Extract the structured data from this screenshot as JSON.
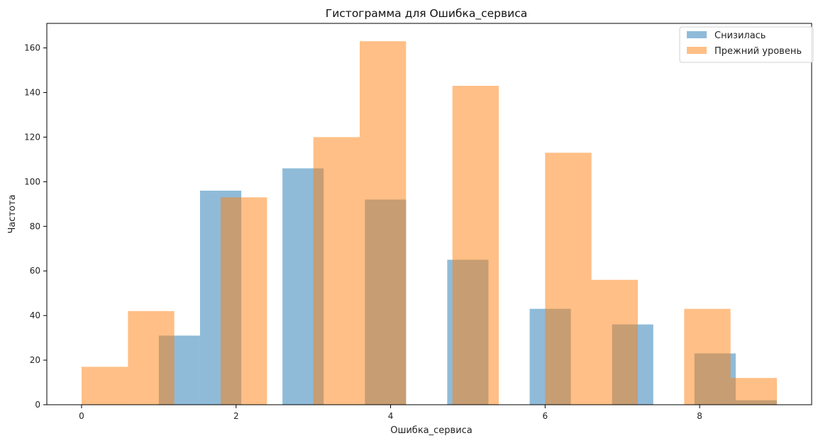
{
  "chart_data": {
    "type": "bar",
    "title": "Гистограмма для Ошибка_сервиса",
    "xlabel": "Ошибка_сервиса",
    "ylabel": "Частота",
    "xlim": [
      -0.45,
      9.45
    ],
    "ylim": [
      0,
      171
    ],
    "x_ticks": [
      0,
      2,
      4,
      6,
      8
    ],
    "y_ticks": [
      0,
      20,
      40,
      60,
      80,
      100,
      120,
      140,
      160
    ],
    "grid": false,
    "legend_position": "top-right",
    "series": [
      {
        "name": "Снизилась",
        "color": "#1f77b4",
        "opacity": 0.5,
        "bin_edges": [
          1.0,
          1.533,
          2.067,
          2.6,
          3.133,
          3.667,
          4.2,
          4.733,
          5.267,
          5.8,
          6.333,
          6.867,
          7.4,
          7.933,
          8.467,
          9.0
        ],
        "counts": [
          31,
          96,
          0,
          106,
          0,
          92,
          0,
          65,
          0,
          43,
          0,
          36,
          0,
          23,
          2
        ]
      },
      {
        "name": "Прежний уровень",
        "color": "#ff7f0e",
        "opacity": 0.5,
        "bin_edges": [
          0.0,
          0.6,
          1.2,
          1.8,
          2.4,
          3.0,
          3.6,
          4.2,
          4.8,
          5.4,
          6.0,
          6.6,
          7.2,
          7.8,
          8.4,
          9.0
        ],
        "counts": [
          17,
          42,
          0,
          93,
          0,
          120,
          163,
          0,
          143,
          0,
          113,
          56,
          0,
          43,
          12
        ]
      }
    ]
  }
}
